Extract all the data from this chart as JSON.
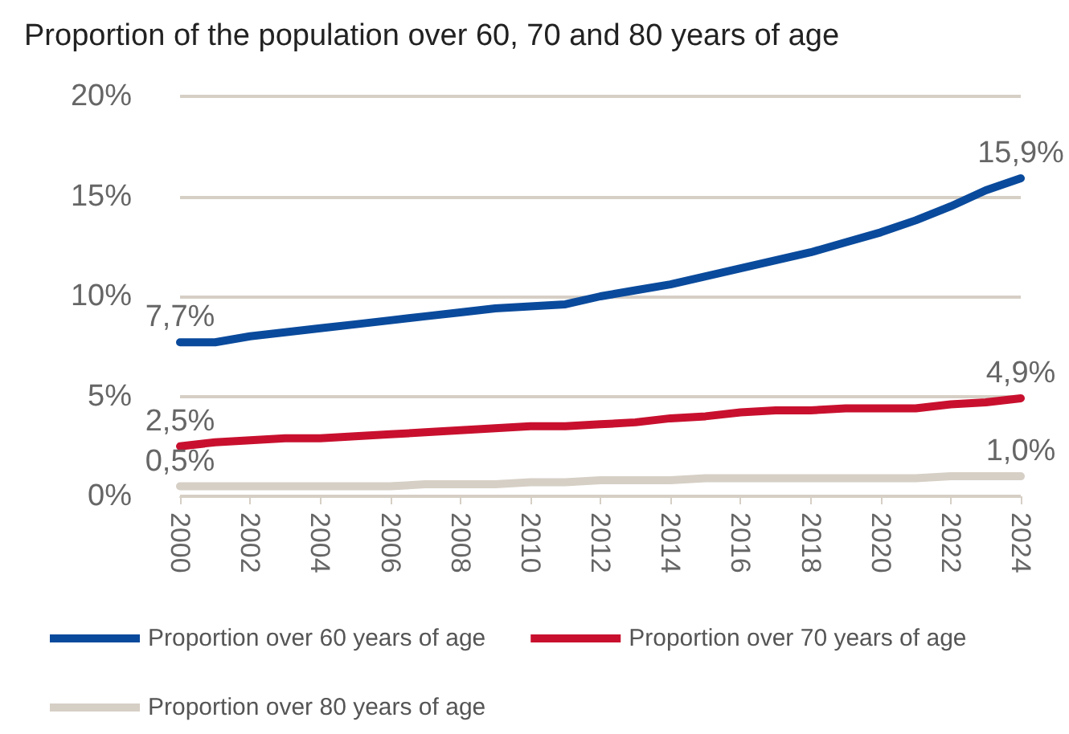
{
  "chart_data": {
    "type": "line",
    "title": "Proportion of the population over 60, 70 and 80 years of age",
    "x": [
      2000,
      2001,
      2002,
      2003,
      2004,
      2005,
      2006,
      2007,
      2008,
      2009,
      2010,
      2011,
      2012,
      2013,
      2014,
      2015,
      2016,
      2017,
      2018,
      2019,
      2020,
      2021,
      2022,
      2023,
      2024
    ],
    "series": [
      {
        "name": "Proportion over 60 years of age",
        "color": "#0a4a9c",
        "values": [
          7.7,
          7.7,
          8.0,
          8.2,
          8.4,
          8.6,
          8.8,
          9.0,
          9.2,
          9.4,
          9.5,
          9.6,
          10.0,
          10.3,
          10.6,
          11.0,
          11.4,
          11.8,
          12.2,
          12.7,
          13.2,
          13.8,
          14.5,
          15.3,
          15.9
        ],
        "value_labels": [
          "7,7%",
          null,
          null,
          null,
          null,
          null,
          null,
          null,
          null,
          null,
          null,
          null,
          null,
          null,
          null,
          null,
          null,
          null,
          null,
          null,
          null,
          null,
          null,
          null,
          "15,9%"
        ]
      },
      {
        "name": "Proportion over 70 years of age",
        "color": "#c8102e",
        "values": [
          2.5,
          2.7,
          2.8,
          2.9,
          2.9,
          3.0,
          3.1,
          3.2,
          3.3,
          3.4,
          3.5,
          3.5,
          3.6,
          3.7,
          3.9,
          4.0,
          4.2,
          4.3,
          4.3,
          4.4,
          4.4,
          4.4,
          4.6,
          4.7,
          4.9
        ],
        "value_labels": [
          "2,5%",
          null,
          null,
          null,
          null,
          null,
          null,
          null,
          null,
          null,
          null,
          null,
          null,
          null,
          null,
          null,
          null,
          null,
          null,
          null,
          null,
          null,
          null,
          null,
          "4,9%"
        ]
      },
      {
        "name": "Proportion over 80 years of age",
        "color": "#d6cfc5",
        "values": [
          0.5,
          0.5,
          0.5,
          0.5,
          0.5,
          0.5,
          0.5,
          0.6,
          0.6,
          0.6,
          0.7,
          0.7,
          0.8,
          0.8,
          0.8,
          0.9,
          0.9,
          0.9,
          0.9,
          0.9,
          0.9,
          0.9,
          1.0,
          1.0,
          1.0
        ],
        "value_labels": [
          "0,5%",
          null,
          null,
          null,
          null,
          null,
          null,
          null,
          null,
          null,
          null,
          null,
          null,
          null,
          null,
          null,
          null,
          null,
          null,
          null,
          null,
          null,
          null,
          null,
          "1,0%"
        ]
      }
    ],
    "xlim": [
      2000,
      2024
    ],
    "xticks": [
      2000,
      2002,
      2004,
      2006,
      2008,
      2010,
      2012,
      2014,
      2016,
      2018,
      2020,
      2022,
      2024
    ],
    "ylim": [
      0,
      20
    ],
    "yticks": [
      {
        "value": 0,
        "label": "0%"
      },
      {
        "value": 5,
        "label": "5%"
      },
      {
        "value": 10,
        "label": "10%"
      },
      {
        "value": 15,
        "label": "15%"
      },
      {
        "value": 20,
        "label": "20%"
      }
    ],
    "grid": "y",
    "legend": "bottom",
    "marker": "none",
    "line_style": "solid"
  }
}
